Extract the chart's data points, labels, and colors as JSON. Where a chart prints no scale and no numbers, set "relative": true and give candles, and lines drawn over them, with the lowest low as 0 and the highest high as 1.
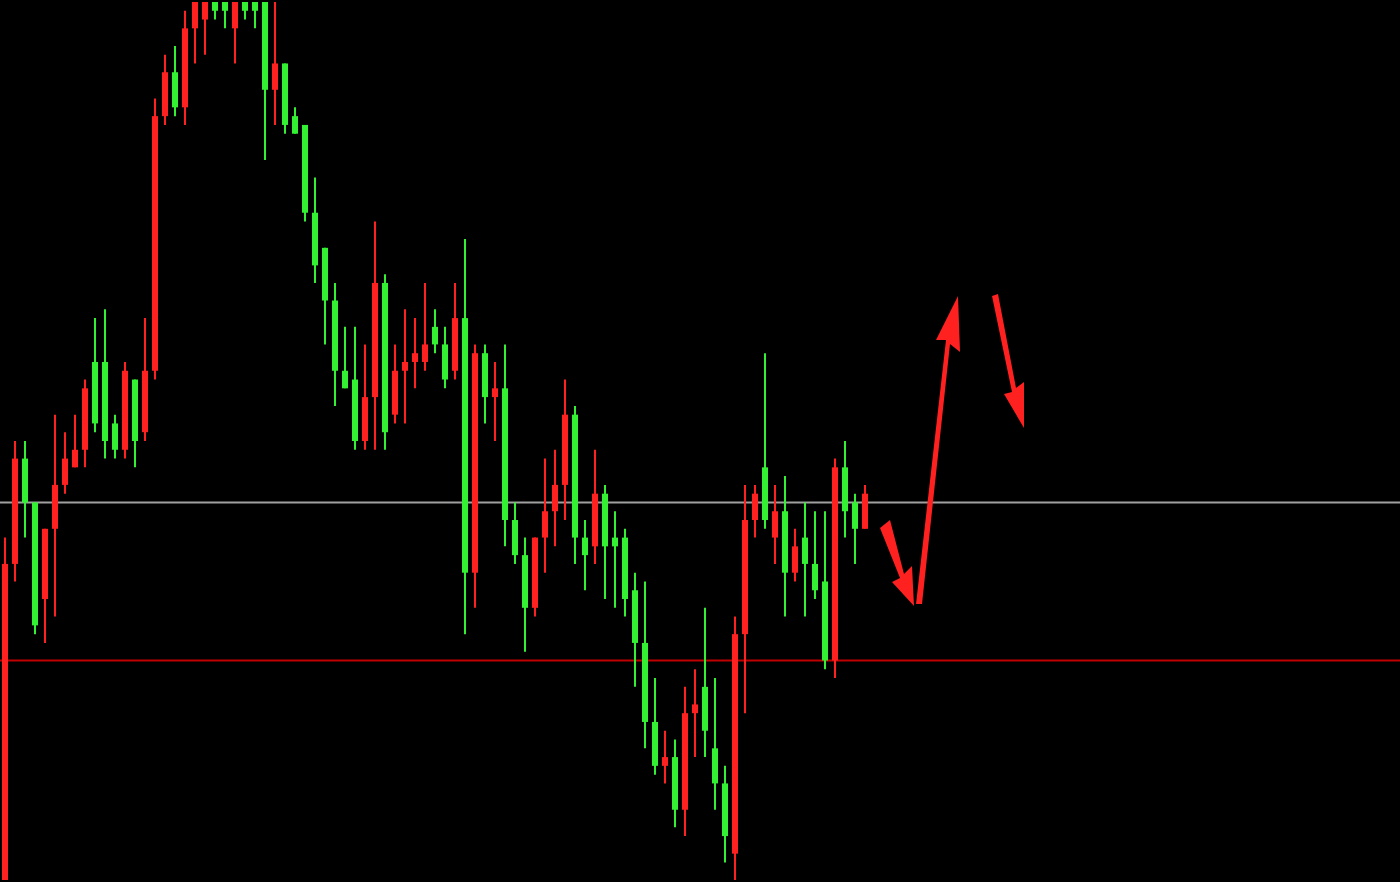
{
  "chart_data": {
    "type": "candlestick",
    "relative": true,
    "colors": [
      "#ff2020",
      "#ff2020",
      "#33f033",
      "#33f033",
      "#ff2020",
      "#ff2020",
      "#ff2020",
      "#ff2020",
      "#ff2020",
      "#33f033",
      "#33f033",
      "#33f033",
      "#ff2020",
      "#33f033",
      "#ff2020",
      "#ff2020",
      "#ff2020",
      "#33f033",
      "#ff2020",
      "#ff2020",
      "#ff2020",
      "#33f033",
      "#33f033",
      "#ff2020",
      "#33f033",
      "#33f033",
      "#33f033",
      "#ff2020",
      "#33f033",
      "#33f033",
      "#33f033",
      "#33f033",
      "#33f033",
      "#33f033",
      "#33f033",
      "#33f033",
      "#ff2020",
      "#ff2020",
      "#33f033",
      "#ff2020",
      "#ff2020",
      "#ff2020",
      "#ff2020",
      "#33f033",
      "#33f033",
      "#ff2020",
      "#33f033",
      "#ff2020",
      "#33f033",
      "#ff2020",
      "#33f033",
      "#33f033",
      "#33f033",
      "#ff2020",
      "#ff2020",
      "#ff2020",
      "#ff2020",
      "#33f033",
      "#33f033",
      "#ff2020",
      "#33f033",
      "#33f033",
      "#33f033",
      "#33f033",
      "#33f033",
      "#33f033",
      "#ff2020",
      "#33f033",
      "#ff2020",
      "#ff2020",
      "#33f033",
      "#33f033",
      "#33f033",
      "#ff2020",
      "#ff2020",
      "#ff2020",
      "#33f033",
      "#ff2020",
      "#33f033",
      "#ff2020",
      "#33f033",
      "#33f033",
      "#33f033",
      "#ff2020",
      "#33f033",
      "#33f033",
      "#ff2020"
    ],
    "categories": [
      null,
      null,
      null,
      null,
      null,
      null,
      null,
      null,
      null,
      null,
      null,
      null,
      null,
      null,
      null,
      null,
      null,
      null,
      null,
      null,
      null,
      null,
      null,
      null,
      null,
      null,
      null,
      null,
      null,
      null,
      null,
      null,
      null,
      null,
      null,
      null,
      null,
      null,
      null,
      null,
      null,
      null,
      null,
      null,
      null,
      null,
      null,
      null,
      null,
      null,
      null,
      null,
      null,
      null,
      null,
      null,
      null,
      null,
      null,
      null,
      null,
      null,
      null,
      null,
      null,
      null,
      null,
      null,
      null,
      null,
      null,
      null,
      null,
      null,
      null,
      null,
      null,
      null,
      null,
      null,
      null,
      null,
      null,
      null,
      null,
      null,
      null
    ],
    "ohlc": [
      [
        0,
        0.39,
        0,
        0.36
      ],
      [
        0.36,
        0.5,
        0.34,
        0.48
      ],
      [
        0.48,
        0.5,
        0.39,
        0.43
      ],
      [
        0.43,
        0.43,
        0.28,
        0.29
      ],
      [
        0.32,
        0.4,
        0.27,
        0.4
      ],
      [
        0.4,
        0.53,
        0.3,
        0.45
      ],
      [
        0.45,
        0.51,
        0.44,
        0.48
      ],
      [
        0.47,
        0.53,
        0.47,
        0.49
      ],
      [
        0.49,
        0.57,
        0.47,
        0.56
      ],
      [
        0.59,
        0.64,
        0.51,
        0.52
      ],
      [
        0.59,
        0.65,
        0.48,
        0.5
      ],
      [
        0.52,
        0.53,
        0.48,
        0.49
      ],
      [
        0.49,
        0.59,
        0.48,
        0.58
      ],
      [
        0.57,
        0.57,
        0.47,
        0.5
      ],
      [
        0.51,
        0.64,
        0.5,
        0.58
      ],
      [
        0.58,
        0.89,
        0.57,
        0.87
      ],
      [
        0.87,
        0.94,
        0.86,
        0.92
      ],
      [
        0.92,
        0.95,
        0.87,
        0.88
      ],
      [
        0.88,
        0.99,
        0.86,
        0.97
      ],
      [
        0.97,
        1,
        0.93,
        1
      ],
      [
        0.98,
        1,
        0.94,
        1
      ],
      [
        1,
        1,
        0.98,
        0.99
      ],
      [
        1,
        1,
        0.97,
        0.99
      ],
      [
        0.97,
        1,
        0.93,
        1
      ],
      [
        1,
        1,
        0.98,
        0.99
      ],
      [
        1,
        1,
        0.97,
        0.99
      ],
      [
        1,
        1,
        0.82,
        0.9
      ],
      [
        0.9,
        1,
        0.86,
        0.93
      ],
      [
        0.93,
        0.93,
        0.85,
        0.86
      ],
      [
        0.87,
        0.88,
        0.85,
        0.85
      ],
      [
        0.86,
        0.86,
        0.75,
        0.76
      ],
      [
        0.76,
        0.8,
        0.68,
        0.7
      ],
      [
        0.72,
        0.72,
        0.61,
        0.66
      ],
      [
        0.66,
        0.68,
        0.54,
        0.58
      ],
      [
        0.58,
        0.63,
        0.56,
        0.56
      ],
      [
        0.57,
        0.63,
        0.49,
        0.5
      ],
      [
        0.5,
        0.61,
        0.49,
        0.55
      ],
      [
        0.55,
        0.75,
        0.49,
        0.68
      ],
      [
        0.68,
        0.69,
        0.49,
        0.51
      ],
      [
        0.53,
        0.61,
        0.52,
        0.58
      ],
      [
        0.58,
        0.65,
        0.52,
        0.59
      ],
      [
        0.59,
        0.64,
        0.56,
        0.6
      ],
      [
        0.59,
        0.68,
        0.58,
        0.61
      ],
      [
        0.63,
        0.65,
        0.6,
        0.61
      ],
      [
        0.61,
        0.63,
        0.56,
        0.57
      ],
      [
        0.58,
        0.68,
        0.57,
        0.64
      ],
      [
        0.64,
        0.73,
        0.28,
        0.35
      ],
      [
        0.35,
        0.61,
        0.31,
        0.6
      ],
      [
        0.6,
        0.61,
        0.52,
        0.55
      ],
      [
        0.55,
        0.59,
        0.5,
        0.56
      ],
      [
        0.56,
        0.61,
        0.38,
        0.41
      ],
      [
        0.41,
        0.43,
        0.36,
        0.37
      ],
      [
        0.37,
        0.39,
        0.26,
        0.31
      ],
      [
        0.31,
        0.39,
        0.3,
        0.39
      ],
      [
        0.39,
        0.48,
        0.35,
        0.42
      ],
      [
        0.42,
        0.49,
        0.38,
        0.45
      ],
      [
        0.45,
        0.57,
        0.41,
        0.53
      ],
      [
        0.53,
        0.54,
        0.36,
        0.39
      ],
      [
        0.39,
        0.41,
        0.33,
        0.37
      ],
      [
        0.38,
        0.49,
        0.36,
        0.44
      ],
      [
        0.44,
        0.45,
        0.32,
        0.38
      ],
      [
        0.39,
        0.42,
        0.31,
        0.38
      ],
      [
        0.39,
        0.4,
        0.3,
        0.32
      ],
      [
        0.33,
        0.35,
        0.22,
        0.27
      ],
      [
        0.27,
        0.34,
        0.15,
        0.18
      ],
      [
        0.18,
        0.23,
        0.12,
        0.13
      ],
      [
        0.13,
        0.17,
        0.11,
        0.14
      ],
      [
        0.14,
        0.16,
        0.06,
        0.08
      ],
      [
        0.08,
        0.22,
        0.05,
        0.19
      ],
      [
        0.19,
        0.24,
        0.14,
        0.2
      ],
      [
        0.22,
        0.31,
        0.14,
        0.17
      ],
      [
        0.15,
        0.23,
        0.08,
        0.11
      ],
      [
        0.11,
        0.13,
        0.02,
        0.05
      ],
      [
        0.03,
        0.3,
        0,
        0.28
      ],
      [
        0.28,
        0.45,
        0.19,
        0.41
      ],
      [
        0.41,
        0.45,
        0.39,
        0.44
      ],
      [
        0.47,
        0.6,
        0.4,
        0.41
      ],
      [
        0.39,
        0.45,
        0.36,
        0.42
      ],
      [
        0.42,
        0.46,
        0.3,
        0.35
      ],
      [
        0.35,
        0.4,
        0.34,
        0.38
      ],
      [
        0.39,
        0.43,
        0.3,
        0.36
      ],
      [
        0.36,
        0.42,
        0.32,
        0.33
      ],
      [
        0.34,
        0.42,
        0.24,
        0.25
      ],
      [
        0.25,
        0.48,
        0.23,
        0.47
      ],
      [
        0.47,
        0.5,
        0.39,
        0.42
      ],
      [
        0.43,
        0.44,
        0.36,
        0.4
      ],
      [
        0.4,
        0.45,
        0.4,
        0.44
      ]
    ],
    "ref_lines": [
      {
        "axis": "y",
        "value": 0.43,
        "color": "#a0a0a0"
      },
      {
        "axis": "y",
        "value": 0.25,
        "color": "#c00000"
      }
    ]
  }
}
